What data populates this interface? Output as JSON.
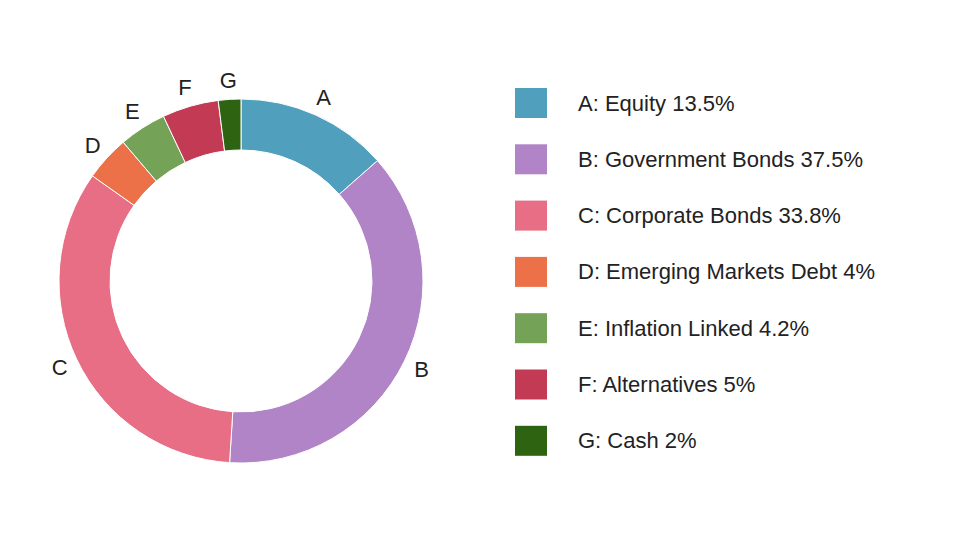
{
  "chart_data": {
    "type": "donut",
    "categories": [
      "A: Equity 13.5%",
      "B: Government Bonds 37.5%",
      "C: Corporate Bonds 33.8%",
      "D: Emerging Markets Debt 4%",
      "E: Inflation Linked 4.2%",
      "F: Alternatives 5%",
      "G: Cash 2%"
    ],
    "slice_labels": [
      "A",
      "B",
      "C",
      "D",
      "E",
      "F",
      "G"
    ],
    "values": [
      13.5,
      37.5,
      33.8,
      4,
      4.2,
      5,
      2
    ],
    "colors": [
      "#4f9fbd",
      "#b084c7",
      "#e76e84",
      "#ec7048",
      "#74a257",
      "#c23a54",
      "#2e6411"
    ],
    "legend": "right"
  }
}
